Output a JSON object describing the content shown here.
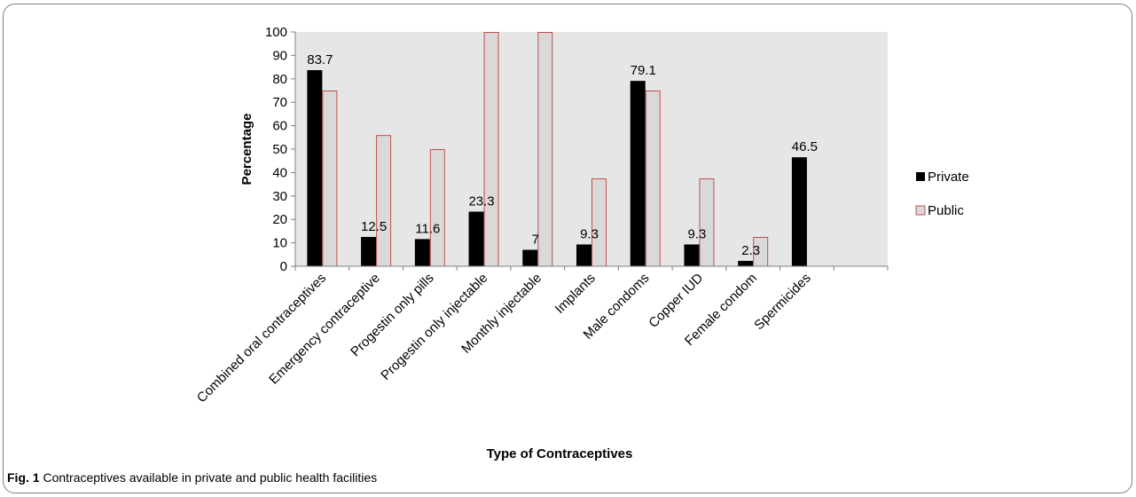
{
  "caption": {
    "label": "Fig. 1",
    "text": "Contraceptives available in private and public health facilities"
  },
  "chart_data": {
    "type": "bar",
    "title": "",
    "xlabel": "Type of Contraceptives",
    "ylabel": "Percentage",
    "ylim": [
      0,
      100
    ],
    "yticks": [
      0,
      10,
      20,
      30,
      40,
      50,
      60,
      70,
      80,
      90,
      100
    ],
    "grid": false,
    "legend_position": "right",
    "categories": [
      "Combined oral contraceptives",
      "Emergency contraceptive",
      "Progestin only pills",
      "Progestin only injectable",
      "Monthly injectable",
      "Implants",
      "Male condoms",
      "Copper IUD",
      "Female condom",
      "Spermicides"
    ],
    "series": [
      {
        "name": "Private",
        "color": "#000000",
        "values": [
          83.7,
          12.5,
          11.6,
          23.3,
          7,
          9.3,
          79.1,
          9.3,
          2.3,
          46.5
        ],
        "labels": [
          "83.7",
          "12.5",
          "11.6",
          "23.3",
          "7",
          "9.3",
          "79.1",
          "9.3",
          "2.3",
          "46.5"
        ]
      },
      {
        "name": "Public",
        "color": "#d9d9d9",
        "stroke": "#c0504d",
        "values": [
          75,
          56,
          50,
          100,
          100,
          37.5,
          75,
          37.5,
          12.5,
          0
        ]
      }
    ],
    "plot_background": "#e6e6e6"
  }
}
